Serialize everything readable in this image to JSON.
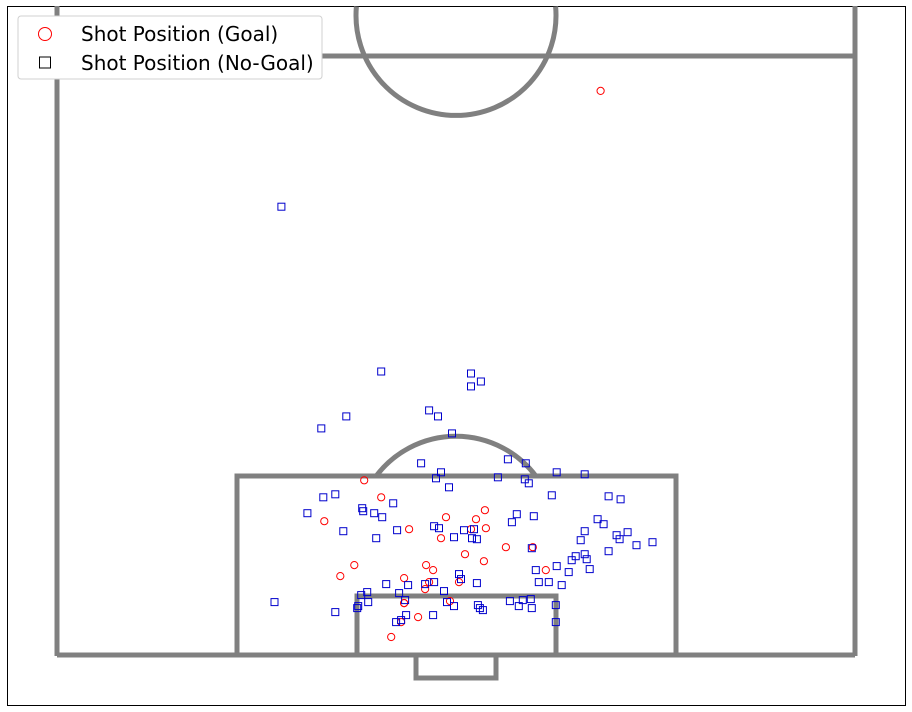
{
  "chart_data": {
    "type": "scatter",
    "title": "",
    "xlabel": "",
    "ylabel": "",
    "xlim": [
      0,
      80
    ],
    "ylim": [
      0,
      60
    ],
    "grid": false,
    "legend_position": "top-left",
    "legend": [
      {
        "label": "Shot Position (Goal)",
        "marker": "circle",
        "color": "#ff0000"
      },
      {
        "label": "Shot Position (No-Goal)",
        "marker": "square",
        "color": "#0000cc"
      }
    ],
    "series": [
      {
        "name": "Shot Position (Goal)",
        "marker": "circle",
        "color": "#ff0000",
        "points": [
          [
            54.5,
            56.5
          ],
          [
            30.8,
            17.5
          ],
          [
            32.5,
            15.8
          ],
          [
            26.8,
            13.4
          ],
          [
            39.0,
            13.8
          ],
          [
            42.9,
            14.5
          ],
          [
            42.0,
            13.6
          ],
          [
            41.5,
            12.6
          ],
          [
            35.3,
            12.6
          ],
          [
            38.5,
            11.7
          ],
          [
            45.0,
            10.8
          ],
          [
            47.7,
            10.8
          ],
          [
            40.9,
            10.1
          ],
          [
            42.8,
            9.4
          ],
          [
            29.8,
            9.0
          ],
          [
            37.0,
            9.0
          ],
          [
            37.7,
            8.5
          ],
          [
            28.4,
            7.9
          ],
          [
            34.8,
            7.7
          ],
          [
            37.3,
            7.3
          ],
          [
            40.3,
            7.3
          ],
          [
            36.9,
            6.6
          ],
          [
            39.4,
            5.4
          ],
          [
            34.8,
            5.2
          ],
          [
            34.8,
            5.2
          ],
          [
            36.2,
            3.8
          ],
          [
            34.5,
            3.3
          ],
          [
            33.5,
            1.8
          ],
          [
            49.0,
            8.5
          ],
          [
            43.0,
            12.7
          ]
        ]
      },
      {
        "name": "Shot Position (No-Goal)",
        "marker": "square",
        "color": "#0000cc",
        "points": [
          [
            22.5,
            44.9
          ],
          [
            41.5,
            28.2
          ],
          [
            42.5,
            27.4
          ],
          [
            41.5,
            26.9
          ],
          [
            32.5,
            28.4
          ],
          [
            37.3,
            24.5
          ],
          [
            38.2,
            23.9
          ],
          [
            29.0,
            23.9
          ],
          [
            26.5,
            22.7
          ],
          [
            39.6,
            22.2
          ],
          [
            38.5,
            18.3
          ],
          [
            38.0,
            17.7
          ],
          [
            44.2,
            17.8
          ],
          [
            46.9,
            17.6
          ],
          [
            47.3,
            17.2
          ],
          [
            50.1,
            18.3
          ],
          [
            52.9,
            18.1
          ],
          [
            45.2,
            19.6
          ],
          [
            47.0,
            19.2
          ],
          [
            36.5,
            19.2
          ],
          [
            39.3,
            16.8
          ],
          [
            27.9,
            16.1
          ],
          [
            26.7,
            15.8
          ],
          [
            56.5,
            15.6
          ],
          [
            49.6,
            16.0
          ],
          [
            30.6,
            14.7
          ],
          [
            30.7,
            14.4
          ],
          [
            31.8,
            14.2
          ],
          [
            32.6,
            13.8
          ],
          [
            46.1,
            14.1
          ],
          [
            45.6,
            13.3
          ],
          [
            40.8,
            12.5
          ],
          [
            41.8,
            12.6
          ],
          [
            37.8,
            12.9
          ],
          [
            38.3,
            12.7
          ],
          [
            32.0,
            11.7
          ],
          [
            34.1,
            12.5
          ],
          [
            41.6,
            11.7
          ],
          [
            25.1,
            14.2
          ],
          [
            28.7,
            12.4
          ],
          [
            39.8,
            11.8
          ],
          [
            47.8,
            13.9
          ],
          [
            52.5,
            11.5
          ],
          [
            52.9,
            10.1
          ],
          [
            47.6,
            10.7
          ],
          [
            42.1,
            11.6
          ],
          [
            50.1,
            8.9
          ],
          [
            48.0,
            8.5
          ],
          [
            51.3,
            8.3
          ],
          [
            48.3,
            7.3
          ],
          [
            49.3,
            7.3
          ],
          [
            42.1,
            7.2
          ],
          [
            40.3,
            8.1
          ],
          [
            40.5,
            7.6
          ],
          [
            50.6,
            7.0
          ],
          [
            33.0,
            7.1
          ],
          [
            36.9,
            7.1
          ],
          [
            35.2,
            7.0
          ],
          [
            37.8,
            7.3
          ],
          [
            38.8,
            6.4
          ],
          [
            34.3,
            6.2
          ],
          [
            31.1,
            6.3
          ],
          [
            30.5,
            6.0
          ],
          [
            34.9,
            5.5
          ],
          [
            31.2,
            5.3
          ],
          [
            39.1,
            5.3
          ],
          [
            42.2,
            5.0
          ],
          [
            45.4,
            5.4
          ],
          [
            46.7,
            5.5
          ],
          [
            47.5,
            5.6
          ],
          [
            50.0,
            5.0
          ],
          [
            39.8,
            4.9
          ],
          [
            42.4,
            4.7
          ],
          [
            42.7,
            4.5
          ],
          [
            46.3,
            4.9
          ],
          [
            47.6,
            4.7
          ],
          [
            21.8,
            5.3
          ],
          [
            30.2,
            4.9
          ],
          [
            30.1,
            4.7
          ],
          [
            37.7,
            4.0
          ],
          [
            35.0,
            4.0
          ],
          [
            27.9,
            4.3
          ],
          [
            34.5,
            3.5
          ],
          [
            34.0,
            3.3
          ],
          [
            50.0,
            3.3
          ],
          [
            54.2,
            13.6
          ],
          [
            54.8,
            13.1
          ],
          [
            55.3,
            15.9
          ],
          [
            56.4,
            11.6
          ],
          [
            58.1,
            11.0
          ],
          [
            57.2,
            12.3
          ],
          [
            52.9,
            12.4
          ],
          [
            59.7,
            11.3
          ],
          [
            56.1,
            12.0
          ],
          [
            51.6,
            9.5
          ],
          [
            52.0,
            9.9
          ],
          [
            53.4,
            8.6
          ],
          [
            53.1,
            9.6
          ],
          [
            55.3,
            10.4
          ],
          [
            33.7,
            15.2
          ]
        ]
      }
    ]
  }
}
